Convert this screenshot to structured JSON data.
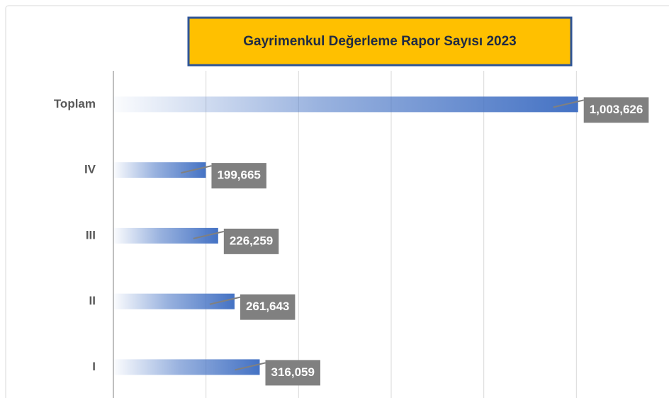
{
  "chart_data": {
    "type": "barh",
    "title": "Gayrimenkul Değerleme Rapor Sayısı 2023",
    "categories": [
      "Toplam",
      "IV",
      "III",
      "II",
      "I"
    ],
    "values": [
      1003626,
      199665,
      226259,
      261643,
      316059
    ],
    "value_labels": [
      "1,003,626",
      "199,665",
      "226,259",
      "261,643",
      "316,059"
    ],
    "color": "#4472c4",
    "xlim": [
      0,
      1200000
    ],
    "xticks": [
      0,
      200000,
      400000,
      600000,
      800000,
      1000000
    ],
    "grid": true
  }
}
